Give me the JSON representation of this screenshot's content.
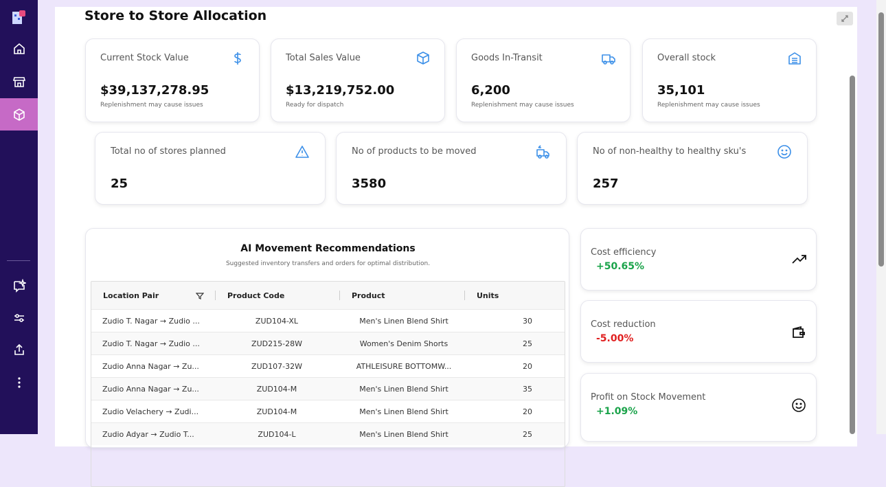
{
  "header": {
    "title": "Store to Store Allocation"
  },
  "kpis": [
    {
      "label": "Current Stock Value",
      "value": "$39,137,278.95",
      "note": "Replenishment may cause issues"
    },
    {
      "label": "Total Sales Value",
      "value": "$13,219,752.00",
      "note": "Ready for dispatch"
    },
    {
      "label": "Goods In-Transit",
      "value": "6,200",
      "note": "Replenishment may cause issues"
    },
    {
      "label": "Overall stock",
      "value": "35,101",
      "note": "Replenishment may cause issues"
    }
  ],
  "kpis2": [
    {
      "label": "Total no of stores planned",
      "value": "25"
    },
    {
      "label": "No of products to be moved",
      "value": "3580"
    },
    {
      "label": "No of non-healthy to healthy sku's",
      "value": "257"
    }
  ],
  "recommendations": {
    "title": "AI Movement Recommendations",
    "subtitle": "Suggested inventory transfers and orders for optimal distribution.",
    "columns": [
      "Location Pair",
      "Product Code",
      "Product",
      "Units"
    ],
    "rows": [
      [
        "Zudio T. Nagar → Zudio ...",
        "ZUD104-XL",
        "Men's Linen Blend Shirt",
        "30"
      ],
      [
        "Zudio T. Nagar → Zudio ...",
        "ZUD215-28W",
        "Women's Denim Shorts",
        "25"
      ],
      [
        "Zudio Anna Nagar → Zu...",
        "ZUD107-32W",
        "ATHLEISURE BOTTOMW...",
        "20"
      ],
      [
        "Zudio Anna Nagar → Zu...",
        "ZUD104-M",
        "Men's Linen Blend Shirt",
        "35"
      ],
      [
        "Zudio Velachery → Zudi...",
        "ZUD104-M",
        "Men's Linen Blend Shirt",
        "20"
      ],
      [
        "Zudio Adyar → Zudio T...",
        "ZUD104-L",
        "Men's Linen Blend Shirt",
        "25"
      ]
    ]
  },
  "metrics": [
    {
      "label": "Cost efficiency",
      "value": "+50.65%"
    },
    {
      "label": "Cost reduction",
      "value": "-5.00%"
    },
    {
      "label": "Profit on Stock Movement",
      "value": "+1.09%"
    }
  ]
}
